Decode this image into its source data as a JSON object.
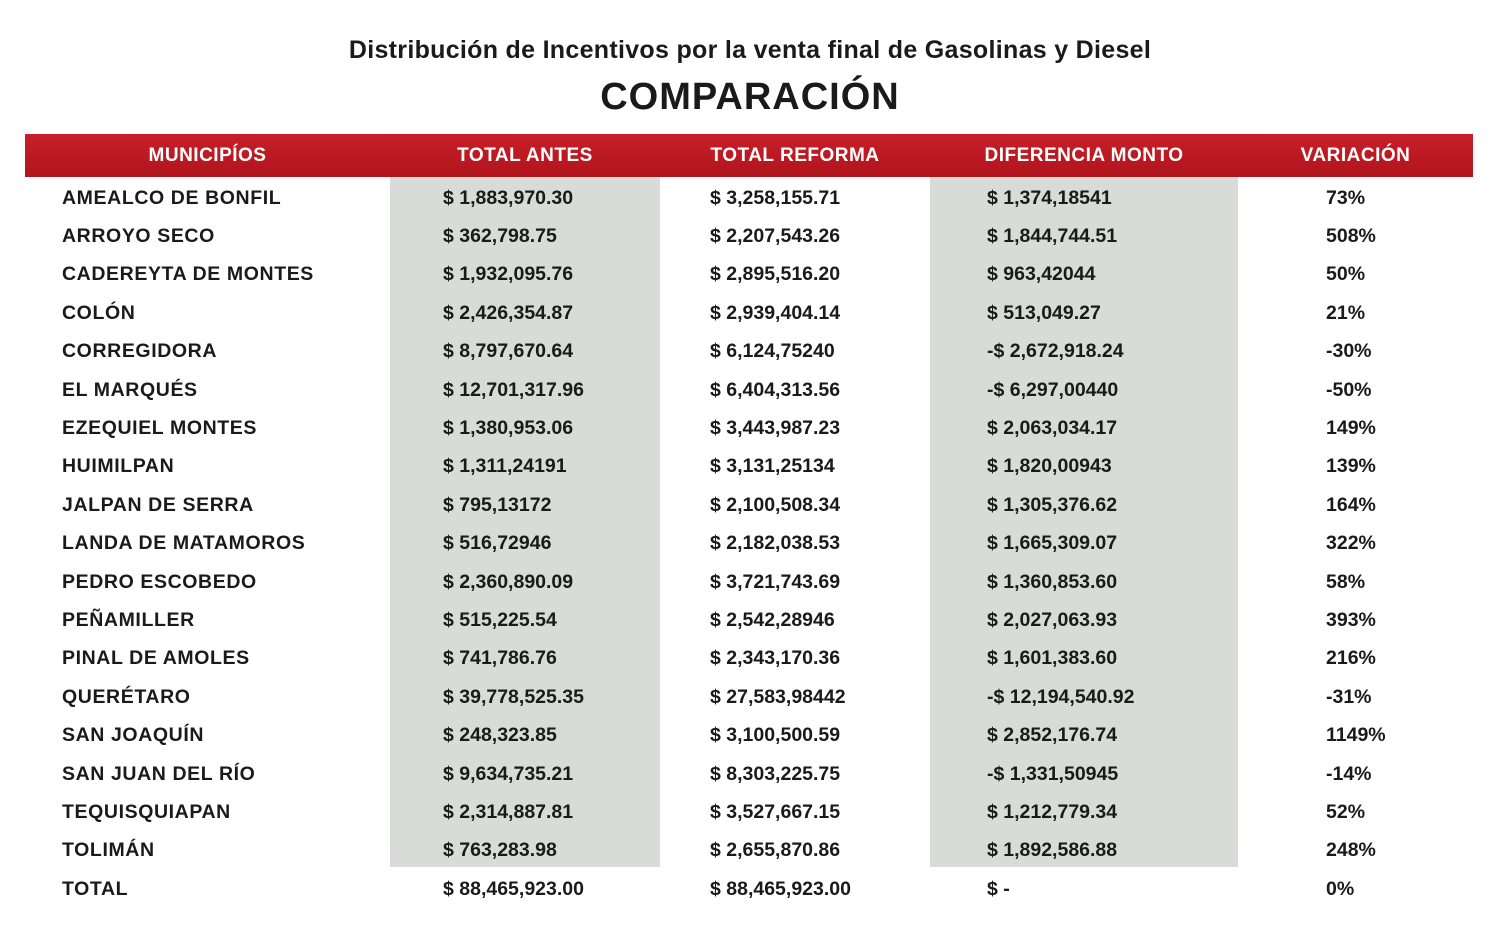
{
  "subtitle": "Distribución de Incentivos por la venta final de Gasolinas y Diesel",
  "title": "COMPARACIÓN",
  "colors": {
    "header": "#c0161e",
    "column_shade": "#d8dbd7"
  },
  "table": {
    "headers": [
      "MUNICIPÍOS",
      "TOTAL ANTES",
      "TOTAL REFORMA",
      "DIFERENCIA MONTO",
      "VARIACIÓN"
    ],
    "rows": [
      [
        "AMEALCO DE BONFIL",
        "$ 1,883,970.30",
        "$ 3,258,155.71",
        "$ 1,374,18541",
        "73%"
      ],
      [
        "ARROYO SECO",
        "$ 362,798.75",
        "$ 2,207,543.26",
        "$ 1,844,744.51",
        "508%"
      ],
      [
        "CADEREYTA DE MONTES",
        "$ 1,932,095.76",
        "$ 2,895,516.20",
        "$ 963,42044",
        "50%"
      ],
      [
        "COLÓN",
        "$ 2,426,354.87",
        "$ 2,939,404.14",
        "$ 513,049.27",
        "21%"
      ],
      [
        "CORREGIDORA",
        "$ 8,797,670.64",
        "$ 6,124,75240",
        "-$ 2,672,918.24",
        "-30%"
      ],
      [
        "EL MARQUÉS",
        "$ 12,701,317.96",
        "$ 6,404,313.56",
        "-$ 6,297,00440",
        "-50%"
      ],
      [
        "EZEQUIEL MONTES",
        "$ 1,380,953.06",
        "$ 3,443,987.23",
        "$ 2,063,034.17",
        "149%"
      ],
      [
        "HUIMILPAN",
        "$ 1,311,24191",
        "$ 3,131,25134",
        "$ 1,820,00943",
        "139%"
      ],
      [
        "JALPAN DE SERRA",
        "$ 795,13172",
        "$ 2,100,508.34",
        "$ 1,305,376.62",
        "164%"
      ],
      [
        "LANDA DE MATAMOROS",
        "$ 516,72946",
        "$ 2,182,038.53",
        "$ 1,665,309.07",
        "322%"
      ],
      [
        "PEDRO ESCOBEDO",
        "$ 2,360,890.09",
        "$ 3,721,743.69",
        "$ 1,360,853.60",
        "58%"
      ],
      [
        "PEÑAMILLER",
        "$ 515,225.54",
        "$ 2,542,28946",
        "$ 2,027,063.93",
        "393%"
      ],
      [
        "PINAL DE AMOLES",
        "$ 741,786.76",
        "$ 2,343,170.36",
        "$ 1,601,383.60",
        "216%"
      ],
      [
        "QUERÉTARO",
        "$ 39,778,525.35",
        "$ 27,583,98442",
        "-$ 12,194,540.92",
        "-31%"
      ],
      [
        "SAN JOAQUÍN",
        "$ 248,323.85",
        "$ 3,100,500.59",
        "$ 2,852,176.74",
        "1149%"
      ],
      [
        "SAN JUAN DEL RÍO",
        "$ 9,634,735.21",
        "$ 8,303,225.75",
        "-$ 1,331,50945",
        "-14%"
      ],
      [
        "TEQUISQUIAPAN",
        "$ 2,314,887.81",
        "$ 3,527,667.15",
        "$ 1,212,779.34",
        "52%"
      ],
      [
        "TOLIMÁN",
        "$ 763,283.98",
        "$ 2,655,870.86",
        "$ 1,892,586.88",
        "248%"
      ],
      [
        "TOTAL",
        "$ 88,465,923.00",
        "$ 88,465,923.00",
        "$ -",
        "0%"
      ]
    ]
  }
}
